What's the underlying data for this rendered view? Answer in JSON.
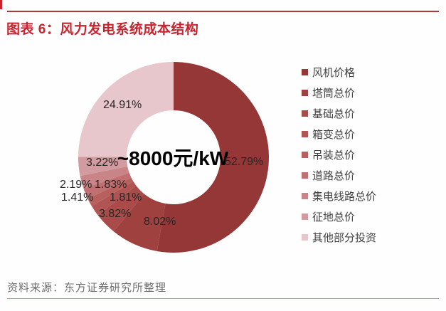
{
  "page": {
    "title": "图表 6：风力发电系统成本结构",
    "source_note": "资料来源：东方证券研究所整理",
    "title_color": "#c9232e",
    "top_rule_color": "#ac3a3a",
    "footer_rule_color": "#c98f96",
    "source_text_color": "#6e6e6e"
  },
  "chart_data": {
    "type": "pie",
    "subtype": "donut",
    "title": "风力发电系统成本结构",
    "center_label": "~8000元/kW",
    "unit": "%",
    "legend_position": "right",
    "start_angle_deg": 0,
    "direction": "clockwise",
    "label_color": "#262626",
    "series": [
      {
        "name": "风机价格",
        "value": 52.79,
        "color": "#953736"
      },
      {
        "name": "塔筒总价",
        "value": 8.02,
        "color": "#9f413f"
      },
      {
        "name": "基础总价",
        "value": 3.82,
        "color": "#a84b49"
      },
      {
        "name": "箱变总价",
        "value": 1.81,
        "color": "#b05553"
      },
      {
        "name": "吊装总价",
        "value": 1.41,
        "color": "#b8605e"
      },
      {
        "name": "道路总价",
        "value": 1.83,
        "color": "#c07070"
      },
      {
        "name": "集电线路总价",
        "value": 2.19,
        "color": "#c88487"
      },
      {
        "name": "征地总价",
        "value": 3.22,
        "color": "#d19b9f"
      },
      {
        "name": "其他部分投资",
        "value": 24.91,
        "color": "#e7c7cb"
      }
    ]
  }
}
